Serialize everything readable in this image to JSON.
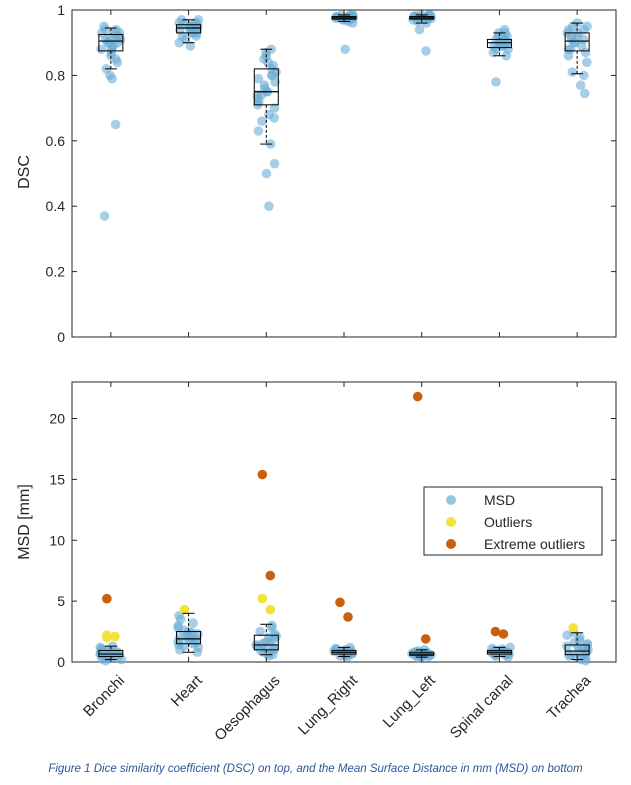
{
  "caption": "Figure 1 Dice similarity coefficient (DSC) on top, and the Mean Surface Distance in mm (MSD) on bottom",
  "colors": {
    "msd": "#6baed6",
    "msd_dark": "#1f77b4",
    "outliers": "#f2e23a",
    "extreme_outliers": "#c8600e",
    "axis": "#262626"
  },
  "chart_data": [
    {
      "type": "scatter",
      "title": "",
      "xlabel": "",
      "ylabel": "DSC",
      "ylim": [
        0,
        1
      ],
      "yticks": [
        0,
        0.2,
        0.4,
        0.6,
        0.8,
        1
      ],
      "ytick_labels": [
        "0",
        "0.2",
        "0.4",
        "0.6",
        "0.8",
        "1"
      ],
      "categories": [
        "Bronchi",
        "Heart",
        "Oesophagus",
        "Lung_Right",
        "Lung_Left",
        "Spinal canal",
        "Trachea"
      ],
      "grid": false,
      "legend": null,
      "boxes": [
        {
          "category": "Bronchi",
          "whisker_low": 0.82,
          "q1": 0.875,
          "median": 0.905,
          "q3": 0.925,
          "whisker_high": 0.945
        },
        {
          "category": "Heart",
          "whisker_low": 0.9,
          "q1": 0.93,
          "median": 0.945,
          "q3": 0.955,
          "whisker_high": 0.97
        },
        {
          "category": "Oesophagus",
          "whisker_low": 0.59,
          "q1": 0.71,
          "median": 0.75,
          "q3": 0.82,
          "whisker_high": 0.88
        },
        {
          "category": "Lung_Right",
          "whisker_low": 0.965,
          "q1": 0.972,
          "median": 0.976,
          "q3": 0.98,
          "whisker_high": 0.985
        },
        {
          "category": "Lung_Left",
          "whisker_low": 0.96,
          "q1": 0.972,
          "median": 0.976,
          "q3": 0.98,
          "whisker_high": 0.985
        },
        {
          "category": "Spinal canal",
          "whisker_low": 0.86,
          "q1": 0.885,
          "median": 0.9,
          "q3": 0.91,
          "whisker_high": 0.93
        },
        {
          "category": "Trachea",
          "whisker_low": 0.805,
          "q1": 0.875,
          "median": 0.905,
          "q3": 0.93,
          "whisker_high": 0.96
        }
      ],
      "series": [
        {
          "name": "MSD",
          "points": {
            "Bronchi": [
              0.37,
              0.65,
              0.79,
              0.8,
              0.82,
              0.84,
              0.85,
              0.86,
              0.87,
              0.88,
              0.88,
              0.89,
              0.89,
              0.9,
              0.9,
              0.9,
              0.91,
              0.91,
              0.91,
              0.92,
              0.92,
              0.92,
              0.93,
              0.93,
              0.93,
              0.94,
              0.94,
              0.95
            ],
            "Heart": [
              0.89,
              0.9,
              0.91,
              0.92,
              0.92,
              0.93,
              0.93,
              0.93,
              0.94,
              0.94,
              0.94,
              0.94,
              0.95,
              0.95,
              0.95,
              0.95,
              0.95,
              0.96,
              0.96,
              0.96,
              0.96,
              0.97,
              0.97
            ],
            "Oesophagus": [
              0.4,
              0.5,
              0.53,
              0.59,
              0.63,
              0.66,
              0.67,
              0.68,
              0.7,
              0.71,
              0.72,
              0.73,
              0.74,
              0.74,
              0.75,
              0.75,
              0.76,
              0.77,
              0.78,
              0.79,
              0.8,
              0.8,
              0.81,
              0.82,
              0.83,
              0.84,
              0.85,
              0.86,
              0.87,
              0.88
            ],
            "Lung_Right": [
              0.88,
              0.96,
              0.965,
              0.97,
              0.97,
              0.972,
              0.974,
              0.975,
              0.976,
              0.977,
              0.978,
              0.978,
              0.979,
              0.98,
              0.98,
              0.981,
              0.982,
              0.983,
              0.984,
              0.985
            ],
            "Lung_Left": [
              0.875,
              0.94,
              0.96,
              0.965,
              0.97,
              0.972,
              0.974,
              0.975,
              0.976,
              0.977,
              0.978,
              0.979,
              0.98,
              0.98,
              0.981,
              0.982,
              0.983,
              0.984,
              0.985,
              0.985
            ],
            "Spinal canal": [
              0.78,
              0.86,
              0.87,
              0.88,
              0.88,
              0.89,
              0.89,
              0.89,
              0.9,
              0.9,
              0.9,
              0.9,
              0.91,
              0.91,
              0.91,
              0.92,
              0.92,
              0.93,
              0.93,
              0.94
            ],
            "Trachea": [
              0.745,
              0.77,
              0.8,
              0.81,
              0.84,
              0.86,
              0.87,
              0.88,
              0.88,
              0.89,
              0.9,
              0.9,
              0.91,
              0.91,
              0.92,
              0.92,
              0.93,
              0.93,
              0.94,
              0.94,
              0.95,
              0.95,
              0.96
            ]
          }
        }
      ]
    },
    {
      "type": "scatter",
      "title": "",
      "xlabel": "",
      "ylabel": "MSD [mm]",
      "ylim": [
        0,
        23
      ],
      "yticks": [
        0,
        5,
        10,
        15,
        20
      ],
      "ytick_labels": [
        "0",
        "5",
        "10",
        "15",
        "20"
      ],
      "categories": [
        "Bronchi",
        "Heart",
        "Oesophagus",
        "Lung_Right",
        "Lung_Left",
        "Spinal canal",
        "Trachea"
      ],
      "grid": false,
      "legend": {
        "placement": "right",
        "entries": [
          "MSD",
          "Outliers",
          "Extreme outliers"
        ]
      },
      "boxes": [
        {
          "category": "Bronchi",
          "whisker_low": 0.2,
          "q1": 0.45,
          "median": 0.65,
          "q3": 0.95,
          "whisker_high": 1.3
        },
        {
          "category": "Heart",
          "whisker_low": 0.8,
          "q1": 1.5,
          "median": 1.9,
          "q3": 2.5,
          "whisker_high": 4.0
        },
        {
          "category": "Oesophagus",
          "whisker_low": 0.6,
          "q1": 1.0,
          "median": 1.4,
          "q3": 2.2,
          "whisker_high": 3.1
        },
        {
          "category": "Lung_Right",
          "whisker_low": 0.45,
          "q1": 0.65,
          "median": 0.8,
          "q3": 0.95,
          "whisker_high": 1.2
        },
        {
          "category": "Lung_Left",
          "whisker_low": 0.4,
          "q1": 0.55,
          "median": 0.65,
          "q3": 0.8,
          "whisker_high": 1.0
        },
        {
          "category": "Spinal canal",
          "whisker_low": 0.45,
          "q1": 0.65,
          "median": 0.8,
          "q3": 0.95,
          "whisker_high": 1.2
        },
        {
          "category": "Trachea",
          "whisker_low": 0.2,
          "q1": 0.6,
          "median": 0.9,
          "q3": 1.4,
          "whisker_high": 2.4
        }
      ],
      "series": [
        {
          "name": "MSD",
          "points": {
            "Bronchi": [
              0.1,
              0.2,
              0.25,
              0.3,
              0.35,
              0.4,
              0.45,
              0.5,
              0.5,
              0.55,
              0.6,
              0.6,
              0.65,
              0.7,
              0.7,
              0.75,
              0.8,
              0.85,
              0.9,
              0.95,
              1.0,
              1.1,
              1.2,
              1.3
            ],
            "Heart": [
              0.8,
              1.0,
              1.2,
              1.3,
              1.4,
              1.5,
              1.6,
              1.7,
              1.8,
              1.9,
              2.0,
              2.0,
              2.1,
              2.2,
              2.3,
              2.4,
              2.5,
              2.6,
              2.8,
              3.0,
              3.2,
              3.5,
              3.8
            ],
            "Oesophagus": [
              0.5,
              0.6,
              0.7,
              0.8,
              0.9,
              1.0,
              1.1,
              1.2,
              1.3,
              1.4,
              1.5,
              1.6,
              1.7,
              1.8,
              2.0,
              2.1,
              2.3,
              2.5,
              2.8,
              3.0
            ],
            "Lung_Right": [
              0.4,
              0.5,
              0.55,
              0.6,
              0.65,
              0.7,
              0.7,
              0.75,
              0.8,
              0.8,
              0.85,
              0.9,
              0.9,
              0.95,
              1.0,
              1.05,
              1.1,
              1.2
            ],
            "Lung_Left": [
              0.35,
              0.4,
              0.45,
              0.5,
              0.5,
              0.55,
              0.6,
              0.6,
              0.65,
              0.65,
              0.7,
              0.7,
              0.75,
              0.8,
              0.8,
              0.85,
              0.9,
              1.0
            ],
            "Spinal canal": [
              0.4,
              0.5,
              0.55,
              0.6,
              0.65,
              0.7,
              0.7,
              0.75,
              0.8,
              0.8,
              0.85,
              0.9,
              0.9,
              0.95,
              1.0,
              1.05,
              1.1,
              1.2
            ],
            "Trachea": [
              0.1,
              0.2,
              0.3,
              0.4,
              0.5,
              0.6,
              0.7,
              0.8,
              0.9,
              1.0,
              1.1,
              1.2,
              1.3,
              1.4,
              1.5,
              1.6,
              1.8,
              2.0,
              2.2,
              2.4
            ]
          }
        },
        {
          "name": "Outliers",
          "points": {
            "Bronchi": [
              2.2,
              2.1,
              2.0
            ],
            "Heart": [
              4.3
            ],
            "Oesophagus": [
              5.2,
              4.3
            ],
            "Trachea": [
              2.8
            ]
          }
        },
        {
          "name": "Extreme outliers",
          "points": {
            "Bronchi": [
              5.2
            ],
            "Oesophagus": [
              15.4,
              7.1
            ],
            "Lung_Right": [
              4.9,
              3.7
            ],
            "Lung_Left": [
              21.8,
              1.9
            ],
            "Spinal canal": [
              2.5,
              2.3
            ]
          }
        }
      ]
    }
  ]
}
